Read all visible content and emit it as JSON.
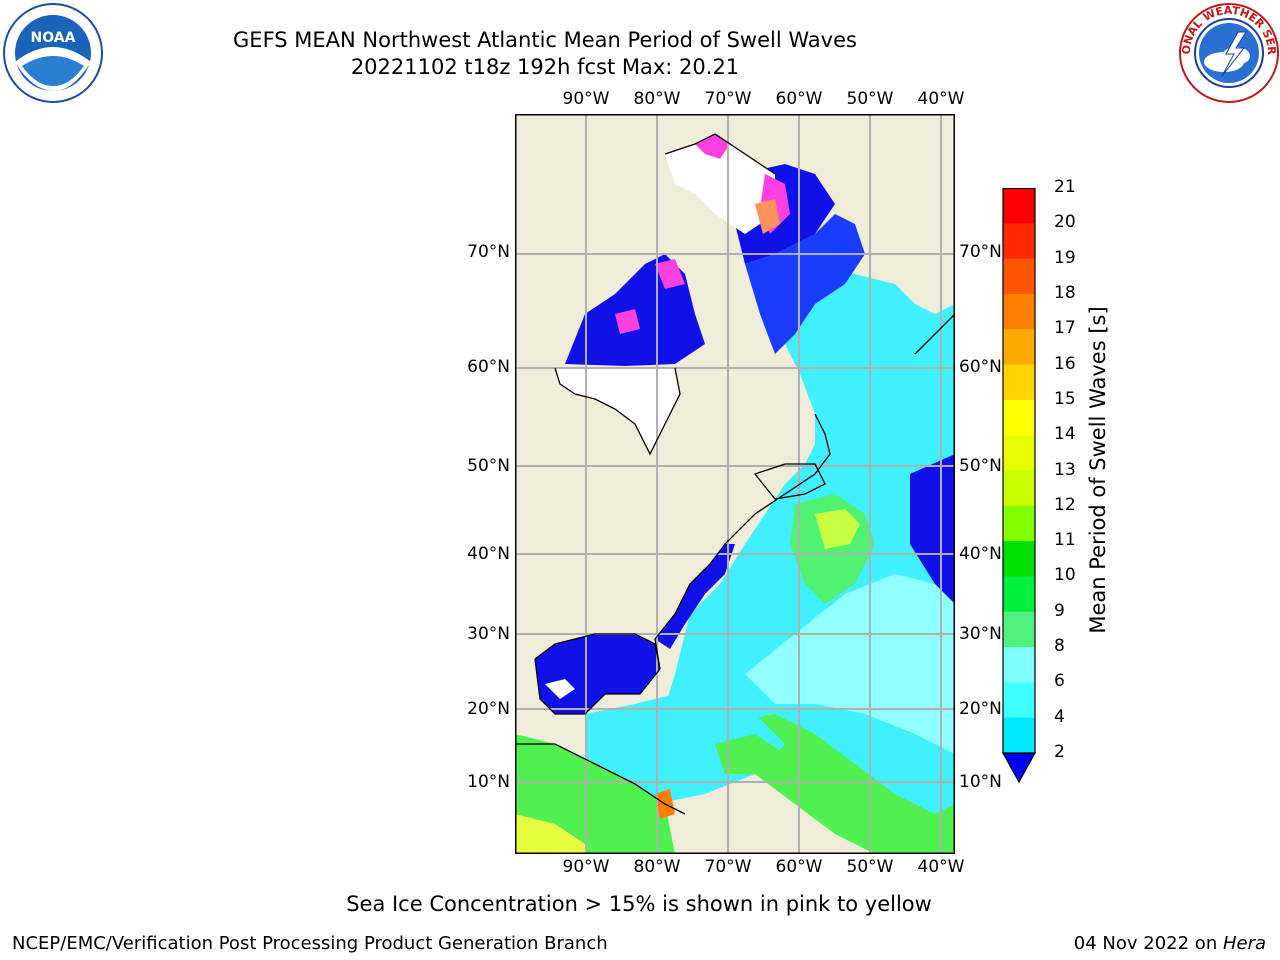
{
  "header": {
    "title_line1": "GEFS MEAN Northwest Atlantic Mean Period of Swell Waves",
    "title_line2": "20221102 t18z 192h fcst   Max: 20.21"
  },
  "logos": {
    "left": "NOAA",
    "right": "NATIONAL WEATHER SERVICE"
  },
  "map": {
    "lon_ticks_top": [
      "90°W",
      "80°W",
      "70°W",
      "60°W",
      "50°W",
      "40°W"
    ],
    "lon_ticks_bottom": [
      "90°W",
      "80°W",
      "70°W",
      "60°W",
      "50°W",
      "40°W"
    ],
    "lat_ticks_left": [
      "70°N",
      "60°N",
      "50°N",
      "40°N",
      "30°N",
      "20°N",
      "10°N"
    ],
    "lat_ticks_right": [
      "70°N",
      "60°N",
      "50°N",
      "40°N",
      "30°N",
      "20°N",
      "10°N"
    ],
    "land_color": "#efedd9",
    "ocean_colors": {
      "deep_blue": "#1010e8",
      "cyan": "#00e8ff",
      "light_cyan": "#80ffff",
      "green": "#50f050",
      "ice_pink": "#ff40e0"
    }
  },
  "colorbar": {
    "label": "Mean Period of Swell Waves [s]",
    "ticks": [
      "21",
      "20",
      "19",
      "18",
      "17",
      "16",
      "15",
      "14",
      "13",
      "12",
      "11",
      "10",
      "9",
      "8",
      "6",
      "4",
      "2"
    ],
    "colors": [
      "#ff0000",
      "#ff2a00",
      "#ff5500",
      "#ff8000",
      "#ffaa00",
      "#ffd400",
      "#ffff00",
      "#e6ff00",
      "#c8ff00",
      "#80ff00",
      "#00e000",
      "#00f040",
      "#50f080",
      "#80ffff",
      "#40ffff",
      "#00e8ff",
      "#0080ff"
    ]
  },
  "note": "Sea Ice Concentration > 15% is shown in pink to yellow",
  "footer": {
    "left": "NCEP/EMC/Verification Post Processing Product Generation Branch",
    "right_date": "04 Nov 2022 on ",
    "right_host": "Hera"
  }
}
